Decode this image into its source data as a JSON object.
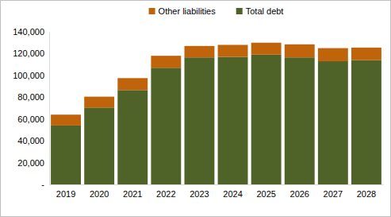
{
  "chart_data": {
    "type": "bar",
    "stacked": true,
    "legend": "top",
    "grid": false,
    "categories": [
      "2019",
      "2020",
      "2021",
      "2022",
      "2023",
      "2024",
      "2025",
      "2026",
      "2027",
      "2028"
    ],
    "series": [
      {
        "name": "Total debt",
        "color": "#4f6228",
        "values": [
          54000,
          70500,
          86500,
          107000,
          116500,
          117000,
          119000,
          116500,
          113000,
          114000
        ]
      },
      {
        "name": "Other liabilities",
        "color": "#c0640c",
        "values": [
          10000,
          10000,
          11000,
          11000,
          10500,
          11000,
          11000,
          12000,
          12000,
          11500
        ]
      }
    ],
    "ylim": [
      0,
      140000
    ],
    "yticks": [
      {
        "value": 0,
        "label": "-"
      },
      {
        "value": 20000,
        "label": "20,000"
      },
      {
        "value": 40000,
        "label": "40,000"
      },
      {
        "value": 60000,
        "label": "60,000"
      },
      {
        "value": 80000,
        "label": "80,000"
      },
      {
        "value": 100000,
        "label": "100,000"
      },
      {
        "value": 120000,
        "label": "120,000"
      },
      {
        "value": 140000,
        "label": "140,000"
      }
    ]
  }
}
